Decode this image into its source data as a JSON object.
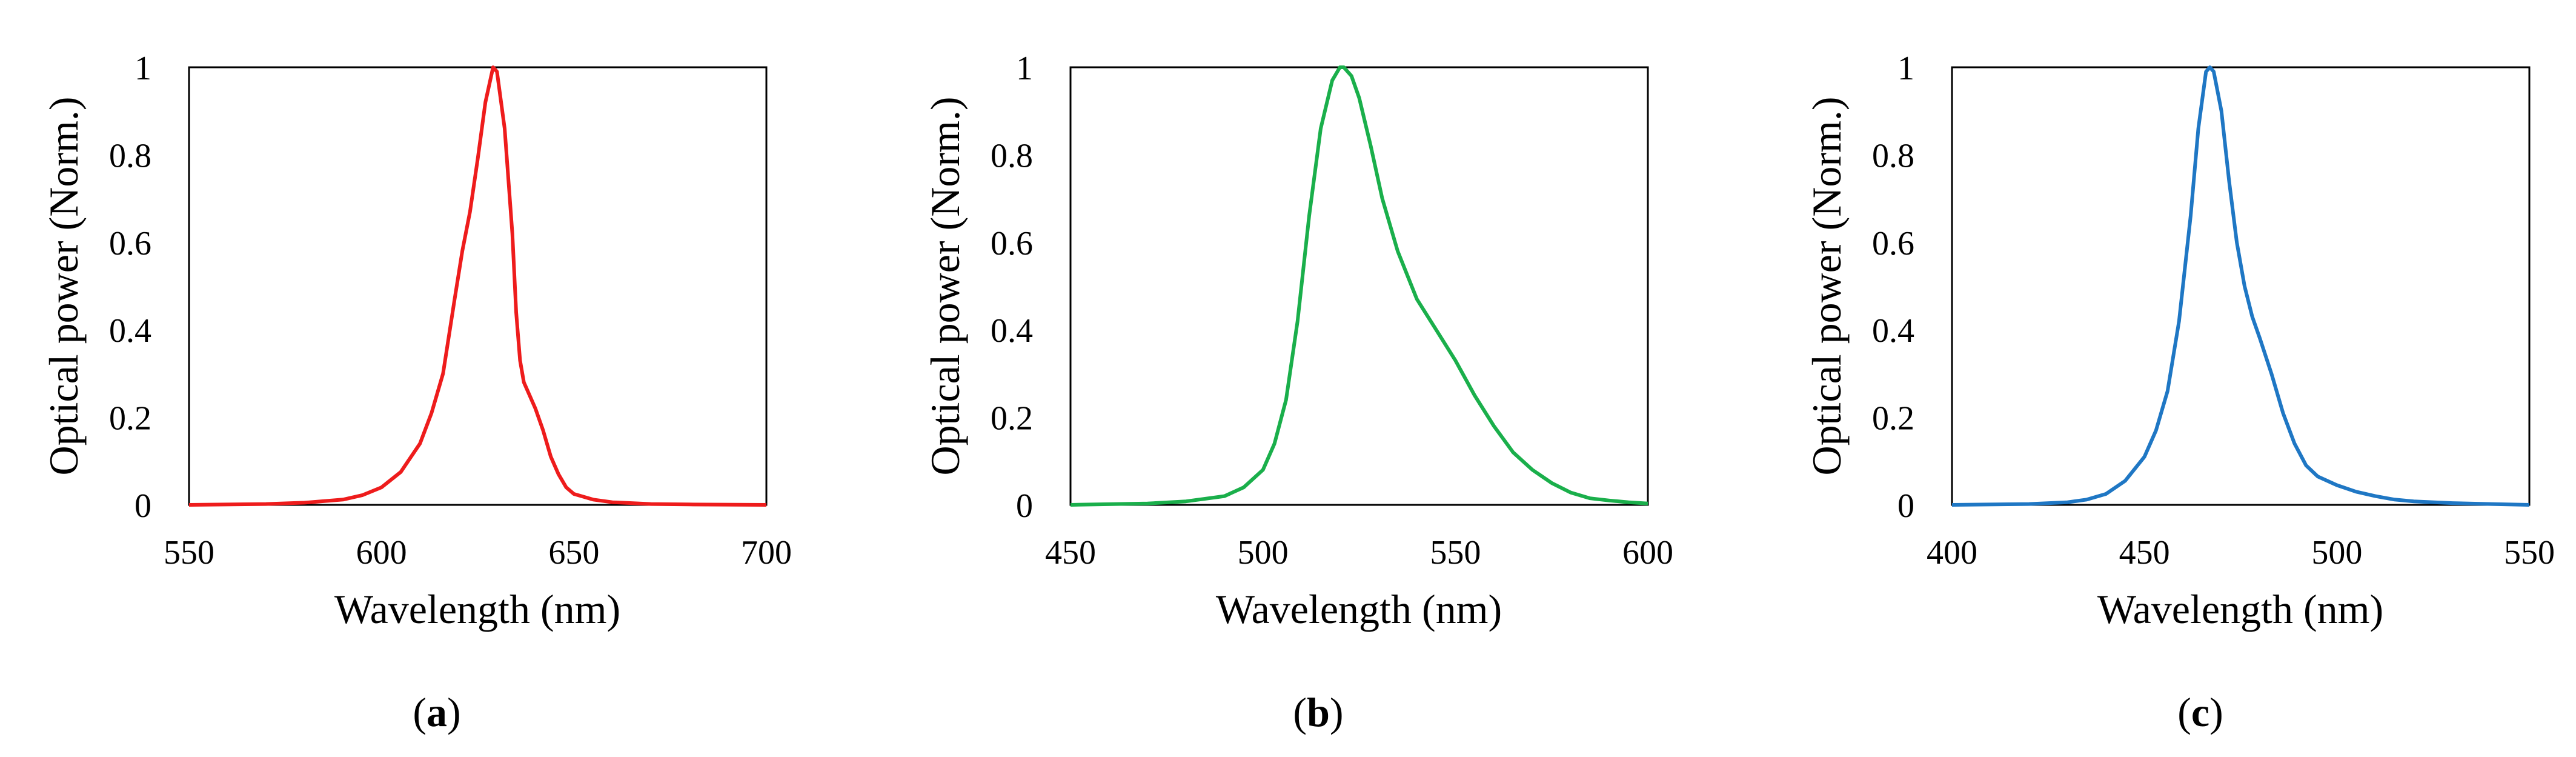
{
  "chart_data": [
    {
      "type": "line",
      "panel_label": {
        "open": "(",
        "letter": "a",
        "close": ")"
      },
      "xlabel": "Wavelength (nm)",
      "ylabel": "Optical power (Norm.)",
      "xlim": [
        550,
        700
      ],
      "ylim": [
        0,
        1
      ],
      "xticks": [
        550,
        600,
        650,
        700
      ],
      "yticks": [
        0,
        0.2,
        0.4,
        0.6,
        0.8,
        1
      ],
      "ytick_labels": [
        "0",
        "0.2",
        "0.4",
        "0.6",
        "0.8",
        "1"
      ],
      "grid": false,
      "series": [
        {
          "name": "red",
          "color": "#ee1c1c",
          "x": [
            550,
            570,
            580,
            590,
            595,
            600,
            605,
            610,
            613,
            616,
            619,
            621,
            623,
            625,
            627,
            629,
            630,
            632,
            634,
            635,
            636,
            637,
            638,
            640,
            642,
            644,
            646,
            648,
            650,
            655,
            660,
            670,
            680,
            700
          ],
          "y": [
            0,
            0.002,
            0.005,
            0.012,
            0.022,
            0.04,
            0.075,
            0.14,
            0.21,
            0.3,
            0.47,
            0.58,
            0.67,
            0.79,
            0.92,
            1.0,
            0.99,
            0.86,
            0.62,
            0.44,
            0.33,
            0.28,
            0.26,
            0.22,
            0.17,
            0.11,
            0.07,
            0.04,
            0.025,
            0.012,
            0.006,
            0.002,
            0.001,
            0
          ]
        }
      ]
    },
    {
      "type": "line",
      "panel_label": {
        "open": "(",
        "letter": "b",
        "close": ")"
      },
      "xlabel": "Wavelength (nm)",
      "ylabel": "Optical power (Norm.)",
      "xlim": [
        450,
        600
      ],
      "ylim": [
        0,
        1
      ],
      "xticks": [
        450,
        500,
        550,
        600
      ],
      "yticks": [
        0,
        0.2,
        0.4,
        0.6,
        0.8,
        1
      ],
      "ytick_labels": [
        "0",
        "0.2",
        "0.4",
        "0.6",
        "0.8",
        "1"
      ],
      "grid": false,
      "series": [
        {
          "name": "green",
          "color": "#1aaf4b",
          "x": [
            450,
            470,
            480,
            490,
            495,
            500,
            503,
            506,
            509,
            512,
            515,
            518,
            520,
            521,
            523,
            525,
            528,
            531,
            535,
            540,
            545,
            550,
            555,
            560,
            565,
            570,
            575,
            580,
            585,
            590,
            595,
            600
          ],
          "y": [
            0,
            0.003,
            0.008,
            0.02,
            0.04,
            0.08,
            0.14,
            0.24,
            0.42,
            0.66,
            0.86,
            0.97,
            1.0,
            1.0,
            0.98,
            0.93,
            0.82,
            0.7,
            0.58,
            0.47,
            0.4,
            0.33,
            0.25,
            0.18,
            0.12,
            0.08,
            0.05,
            0.028,
            0.015,
            0.01,
            0.006,
            0.003
          ]
        }
      ]
    },
    {
      "type": "line",
      "panel_label": {
        "open": "(",
        "letter": "c",
        "close": ")"
      },
      "xlabel": "Wavelength (nm)",
      "ylabel": "Optical power (Norm.)",
      "xlim": [
        400,
        550
      ],
      "ylim": [
        0,
        1
      ],
      "xticks": [
        400,
        450,
        500,
        550
      ],
      "yticks": [
        0,
        0.2,
        0.4,
        0.6,
        0.8,
        1
      ],
      "ytick_labels": [
        "0",
        "0.2",
        "0.4",
        "0.6",
        "0.8",
        "1"
      ],
      "grid": false,
      "series": [
        {
          "name": "blue",
          "color": "#1f77c4",
          "x": [
            400,
            420,
            430,
            435,
            440,
            445,
            450,
            453,
            456,
            459,
            462,
            464,
            466,
            467,
            468,
            470,
            472,
            474,
            476,
            478,
            480,
            483,
            486,
            489,
            492,
            495,
            500,
            505,
            510,
            515,
            520,
            530,
            540,
            550
          ],
          "y": [
            0,
            0.002,
            0.006,
            0.012,
            0.025,
            0.055,
            0.11,
            0.17,
            0.26,
            0.42,
            0.66,
            0.86,
            0.99,
            1.0,
            0.99,
            0.9,
            0.74,
            0.6,
            0.5,
            0.43,
            0.38,
            0.3,
            0.21,
            0.14,
            0.09,
            0.065,
            0.045,
            0.03,
            0.02,
            0.012,
            0.008,
            0.004,
            0.002,
            0
          ]
        }
      ]
    }
  ]
}
